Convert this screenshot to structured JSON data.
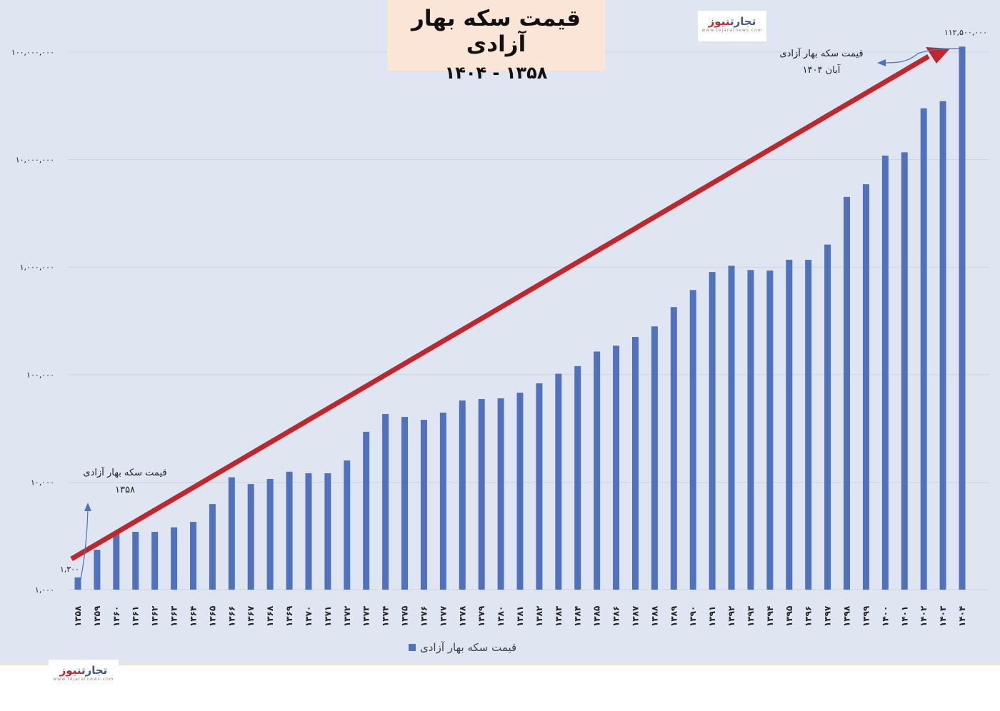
{
  "title": {
    "main": "قیمت سکه بهار آزادی",
    "subtitle": "۱۴۰۴ - ۱۳۵۸"
  },
  "logo": {
    "name_part1": "تجارت",
    "name_part2": "نیوز",
    "url": "www.tejaratnews.com"
  },
  "colors": {
    "bar": "#4f71be",
    "trend_arrow": "#c0272d",
    "background": "#dfe6f2",
    "title_box": "#fbe5d6",
    "annotation_arrow": "#4f71be"
  },
  "annotations": {
    "start_label_line1": "قیمت سکه بهار آزادی",
    "start_label_line2": "۱۳۵۸",
    "start_value": "۱,۳۰۰",
    "end_label_line1": "قیمت سکه بهار آزادی",
    "end_label_line2": "آبان ۱۴۰۴",
    "end_value": "۱۱۲,۵۰۰,۰۰۰"
  },
  "legend": {
    "label": "قیمت سکه بهار آزادی"
  },
  "chart_data": {
    "type": "bar",
    "title": "قیمت سکه بهار آزادی ۱۳۵۸ - ۱۴۰۴",
    "xlabel": "",
    "ylabel": "",
    "yscale": "log",
    "ylim": [
      1000,
      112500000
    ],
    "grid": true,
    "legend_position": "bottom",
    "y_tick_labels": [
      "۱,۰۰۰",
      "۱۰,۰۰۰",
      "۱۰۰,۰۰۰",
      "۱,۰۰۰,۰۰۰",
      "۱۰,۰۰۰,۰۰۰",
      "۱۰۰,۰۰۰,۰۰۰"
    ],
    "y_ticks": [
      1000,
      10000,
      100000,
      1000000,
      10000000,
      100000000
    ],
    "categories": [
      "۱۳۵۸",
      "۱۳۵۹",
      "۱۳۶۰",
      "۱۳۶۱",
      "۱۳۶۲",
      "۱۳۶۳",
      "۱۳۶۴",
      "۱۳۶۵",
      "۱۳۶۶",
      "۱۳۶۷",
      "۱۳۶۸",
      "۱۳۶۹",
      "۱۳۷۰",
      "۱۳۷۱",
      "۱۳۷۲",
      "۱۳۷۳",
      "۱۳۷۴",
      "۱۳۷۵",
      "۱۳۷۶",
      "۱۳۷۷",
      "۱۳۷۸",
      "۱۳۷۹",
      "۱۳۸۰",
      "۱۳۸۱",
      "۱۳۸۲",
      "۱۳۸۳",
      "۱۳۸۴",
      "۱۳۸۵",
      "۱۳۸۶",
      "۱۳۸۷",
      "۱۳۸۸",
      "۱۳۸۹",
      "۱۳۹۰",
      "۱۳۹۱",
      "۱۳۹۲",
      "۱۳۹۳",
      "۱۳۹۴",
      "۱۳۹۵",
      "۱۳۹۶",
      "۱۳۹۷",
      "۱۳۹۸",
      "۱۳۹۹",
      "۱۴۰۰",
      "۱۴۰۱",
      "۱۴۰۲",
      "۱۴۰۳",
      "۱۴۰۴"
    ],
    "series": [
      {
        "name": "قیمت سکه بهار آزادی",
        "values": [
          1300,
          2350,
          3300,
          3450,
          3450,
          3800,
          4270,
          6250,
          11100,
          9600,
          10700,
          12500,
          12100,
          12100,
          15900,
          29400,
          43000,
          40400,
          38000,
          44300,
          57500,
          59300,
          60200,
          68000,
          83000,
          102000,
          120000,
          164000,
          186000,
          224000,
          281000,
          425000,
          612000,
          900000,
          1030000,
          940000,
          930000,
          1170000,
          1170000,
          1620000,
          4500000,
          5900000,
          10900000,
          11700000,
          30000000,
          35000000,
          112500000
        ]
      }
    ],
    "annotations": [
      {
        "text": "قیمت سکه بهار آزادی ۱۳۵۸",
        "value": "۱,۳۰۰"
      },
      {
        "text": "قیمت سکه بهار آزادی آبان ۱۴۰۴",
        "value": "۱۱۲,۵۰۰,۰۰۰"
      }
    ],
    "trend_arrow": {
      "from": "۱۳۵۸",
      "to": "۱۴۰۴",
      "color": "#c0272d"
    }
  }
}
